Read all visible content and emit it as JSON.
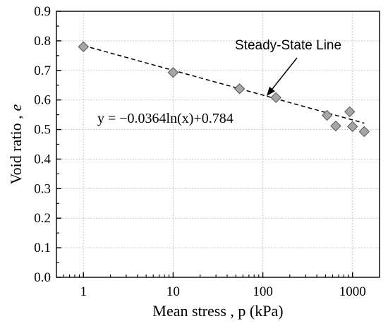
{
  "chart_data": {
    "type": "scatter",
    "title": "",
    "xlabel": "Mean stress , p (kPa)",
    "ylabel_prefix": "Void ratio ,",
    "ylabel_var": "e",
    "xscale": "log",
    "xlim": [
      0.5,
      2000
    ],
    "ylim": [
      0,
      0.9
    ],
    "grid": true,
    "x_ticks": [
      1,
      10,
      100,
      1000
    ],
    "x_tick_labels": [
      "1",
      "10",
      "100",
      "1000"
    ],
    "y_ticks": [
      0,
      0.1,
      0.2,
      0.3,
      0.4,
      0.5,
      0.6,
      0.7,
      0.8,
      0.9
    ],
    "y_tick_labels": [
      "0.0",
      "0.1",
      "0.2",
      "0.3",
      "0.4",
      "0.5",
      "0.6",
      "0.7",
      "0.8",
      "0.9"
    ],
    "series": [
      {
        "marker": "diamond",
        "color": "#a6a6a6",
        "x": [
          1,
          10,
          55,
          140,
          520,
          650,
          930,
          1000,
          1350
        ],
        "y": [
          0.78,
          0.693,
          0.638,
          0.608,
          0.548,
          0.512,
          0.56,
          0.51,
          0.493
        ]
      }
    ],
    "trendline": {
      "style": "dashed",
      "slope": -0.0364,
      "intercept": 0.784,
      "x_range": [
        1,
        1350
      ],
      "equation": "y = −0.0364ln(x)+0.784"
    },
    "annotation": {
      "text": "Steady-State Line",
      "arrow_target": [
        110,
        0.613
      ]
    }
  }
}
